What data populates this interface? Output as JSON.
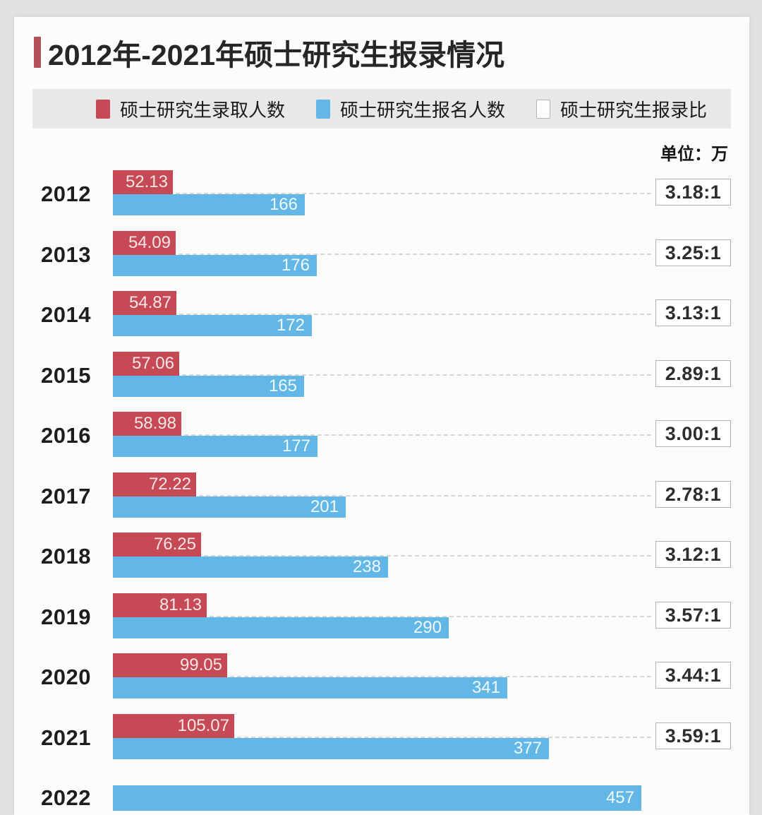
{
  "page": {
    "title": "2012年-2021年硕士研究生报录情况",
    "unit_label": "单位：万"
  },
  "colors": {
    "admitted_red": "#c64a55",
    "applicants_blue": "#63b7e6",
    "title_accent": "#b4505b",
    "legend_strip": "#e8e8e6"
  },
  "legend": {
    "items": [
      {
        "label": "硕士研究生录取人数",
        "swatch": "red-swatch"
      },
      {
        "label": "硕士研究生报名人数",
        "swatch": "blue-swatch"
      },
      {
        "label": "硕士研究生报录比",
        "swatch": "white-swatch"
      }
    ]
  },
  "rows": [
    {
      "year": "2012",
      "admitted": 52.13,
      "applicants": 166,
      "ratio": "3.18:1"
    },
    {
      "year": "2013",
      "admitted": 54.09,
      "applicants": 176,
      "ratio": "3.25:1"
    },
    {
      "year": "2014",
      "admitted": 54.87,
      "applicants": 172,
      "ratio": "3.13:1"
    },
    {
      "year": "2015",
      "admitted": 57.06,
      "applicants": 165,
      "ratio": "2.89:1"
    },
    {
      "year": "2016",
      "admitted": 58.98,
      "applicants": 177,
      "ratio": "3.00:1"
    },
    {
      "year": "2017",
      "admitted": 72.22,
      "applicants": 201,
      "ratio": "2.78:1"
    },
    {
      "year": "2018",
      "admitted": 76.25,
      "applicants": 238,
      "ratio": "3.12:1"
    },
    {
      "year": "2019",
      "admitted": 81.13,
      "applicants": 290,
      "ratio": "3.57:1"
    },
    {
      "year": "2020",
      "admitted": 99.05,
      "applicants": 341,
      "ratio": "3.44:1"
    },
    {
      "year": "2021",
      "admitted": 105.07,
      "applicants": 377,
      "ratio": "3.59:1"
    },
    {
      "year": "2022",
      "admitted": null,
      "applicants": 457,
      "ratio": null
    }
  ],
  "chart_data": {
    "type": "bar",
    "orientation": "horizontal",
    "title": "2012年-2021年硕士研究生报录情况",
    "unit_label": "单位：万",
    "categories": [
      "2012",
      "2013",
      "2014",
      "2015",
      "2016",
      "2017",
      "2018",
      "2019",
      "2020",
      "2021",
      "2022"
    ],
    "series": [
      {
        "name": "硕士研究生录取人数",
        "color": "#c64a55",
        "values": [
          52.13,
          54.09,
          54.87,
          57.06,
          58.98,
          72.22,
          76.25,
          81.13,
          99.05,
          105.07,
          null
        ]
      },
      {
        "name": "硕士研究生报名人数",
        "color": "#63b7e6",
        "values": [
          166,
          176,
          172,
          165,
          177,
          201,
          238,
          290,
          341,
          377,
          457
        ]
      },
      {
        "name": "硕士研究生报录比",
        "values": [
          "3.18:1",
          "3.25:1",
          "3.13:1",
          "2.89:1",
          "3.00:1",
          "2.78:1",
          "3.12:1",
          "3.57:1",
          "3.44:1",
          "3.59:1",
          null
        ]
      }
    ],
    "value_axis_range": [
      0,
      500
    ],
    "grid": false,
    "legend_position": "top",
    "data_labels": "inside-bar-end"
  }
}
